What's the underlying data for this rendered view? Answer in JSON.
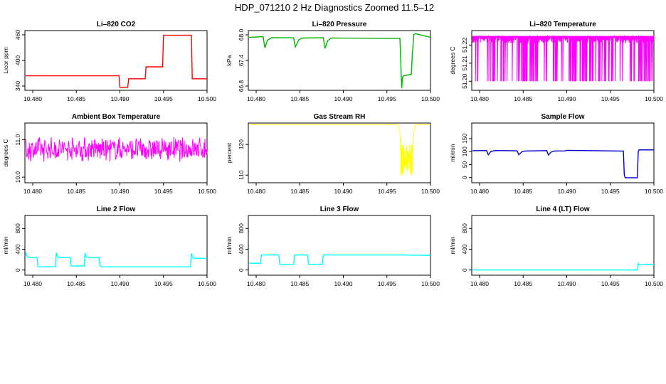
{
  "figure_title": "HDP_071210  2 Hz Diagnostics Zoomed 11.5–12",
  "chart_data": [
    {
      "type": "line",
      "title": "Li–820 CO2",
      "ylabel": "Licor ppm",
      "color": "#ff0000",
      "xlim": [
        10.4791,
        10.5
      ],
      "ylim": [
        330,
        470
      ],
      "xticks": [
        "10.480",
        "10.485",
        "10.490",
        "10.495",
        "10.500"
      ],
      "yticks": [
        "340",
        "400",
        "460"
      ],
      "series": [
        {
          "name": "CO2",
          "x": [
            10.4792,
            10.4899,
            10.49,
            10.4909,
            10.491,
            10.4929,
            10.493,
            10.4949,
            10.495,
            10.4982,
            10.4983,
            10.5
          ],
          "y": [
            364,
            364,
            337,
            337,
            357,
            357,
            385,
            385,
            459,
            459,
            357,
            357
          ]
        }
      ]
    },
    {
      "type": "line",
      "title": "Li–820 Pressure",
      "ylabel": "kPa",
      "color": "#00b400",
      "xlim": [
        10.4791,
        10.5
      ],
      "ylim": [
        66.7,
        68.1
      ],
      "xticks": [
        "10.480",
        "10.485",
        "10.490",
        "10.495",
        "10.500"
      ],
      "yticks": [
        "66.8",
        "67.4",
        "68.0"
      ],
      "series": [
        {
          "name": "Pressure",
          "x": [
            10.4792,
            10.4808,
            10.481,
            10.4813,
            10.4818,
            10.4843,
            10.4845,
            10.4849,
            10.4853,
            10.4877,
            10.4879,
            10.4882,
            10.4886,
            10.4965,
            10.4966,
            10.4967,
            10.4968,
            10.4969,
            10.4978,
            10.4979,
            10.4981,
            10.4983,
            10.5
          ],
          "y": [
            67.95,
            67.95,
            67.7,
            67.88,
            67.93,
            67.93,
            67.72,
            67.88,
            67.92,
            67.93,
            67.68,
            67.86,
            67.92,
            67.92,
            67.3,
            66.75,
            67.0,
            67.05,
            67.07,
            67.5,
            68.0,
            68.02,
            67.95
          ]
        }
      ]
    },
    {
      "type": "line",
      "title": "Li–820 Temperature",
      "ylabel": "degrees C",
      "color": "#ff00ff",
      "xlim": [
        10.4791,
        10.5
      ],
      "ylim": [
        51.195,
        51.228
      ],
      "xticks": [
        "10.480",
        "10.485",
        "10.490",
        "10.495",
        "10.500"
      ],
      "yticks": [
        "51.20",
        "51.21",
        "51.22"
      ],
      "series": [
        {
          "name": "Temperature",
          "x": [
            10.4792,
            10.5
          ],
          "y": [
            51.225,
            51.225
          ],
          "low": 51.2,
          "note": "rapid oscillation between 51.20 and 51.225"
        }
      ]
    },
    {
      "type": "line",
      "title": "Ambient Box Temperature",
      "ylabel": "degrees C",
      "color": "#ff00ff",
      "xlim": [
        10.4791,
        10.5
      ],
      "ylim": [
        9.85,
        11.45
      ],
      "xticks": [
        "10.480",
        "10.485",
        "10.490",
        "10.495",
        "10.500"
      ],
      "yticks": [
        "10.0",
        "11.0"
      ],
      "series": [
        {
          "name": "Ambient",
          "x": [
            10.4792,
            10.5
          ],
          "y": [
            10.75,
            10.75
          ],
          "spread": 0.35,
          "note": "noisy around 10.75"
        }
      ]
    },
    {
      "type": "line",
      "title": "Gas Stream RH",
      "ylabel": "percent",
      "color": "#ffff00",
      "xlim": [
        10.4791,
        10.5
      ],
      "ylim": [
        107.5,
        127
      ],
      "xticks": [
        "10.480",
        "10.485",
        "10.490",
        "10.495",
        "10.500"
      ],
      "yticks": [
        "110",
        "120"
      ],
      "series": [
        {
          "name": "RH",
          "x": [
            10.4792,
            10.4963,
            10.4965,
            10.4966,
            10.4967,
            10.4968,
            10.4969,
            10.4978,
            10.4979,
            10.4981,
            10.4983,
            10.5
          ],
          "y": [
            126.5,
            126.5,
            124,
            117,
            112,
            111.5,
            111.5,
            111.5,
            117,
            124,
            126.5,
            126.5
          ]
        }
      ]
    },
    {
      "type": "line",
      "title": "Sample Flow",
      "ylabel": "ml/min",
      "color": "#0000cc",
      "xlim": [
        10.4791,
        10.5
      ],
      "ylim": [
        -20,
        210
      ],
      "xticks": [
        "10.480",
        "10.485",
        "10.490",
        "10.495",
        "10.500"
      ],
      "yticks": [
        "0",
        "50",
        "100",
        "150"
      ],
      "series": [
        {
          "name": "Sample Flow",
          "x": [
            10.4792,
            10.4808,
            10.481,
            10.4813,
            10.4818,
            10.4843,
            10.4845,
            10.4849,
            10.4853,
            10.4877,
            10.4879,
            10.4882,
            10.4886,
            10.4898,
            10.49,
            10.4965,
            10.4966,
            10.4967,
            10.4981,
            10.4982,
            10.4983,
            10.5
          ],
          "y": [
            103,
            103,
            88,
            100,
            103,
            103,
            87,
            100,
            103,
            103,
            86,
            99,
            102,
            102,
            105,
            103,
            10,
            0,
            0,
            100,
            107,
            107
          ]
        }
      ]
    },
    {
      "type": "line",
      "title": "Line 2 Flow",
      "ylabel": "ml/min",
      "color": "#00ffff",
      "xlim": [
        10.4791,
        10.5
      ],
      "ylim": [
        -100,
        1050
      ],
      "xticks": [
        "10.480",
        "10.485",
        "10.490",
        "10.495",
        "10.500"
      ],
      "yticks": [
        "0",
        "400",
        "800"
      ],
      "series": [
        {
          "name": "Line 2 Flow",
          "x": [
            10.4792,
            10.4793,
            10.4795,
            10.4805,
            10.4806,
            10.4826,
            10.4827,
            10.4828,
            10.483,
            10.4843,
            10.4844,
            10.4859,
            10.486,
            10.4861,
            10.4863,
            10.4876,
            10.4877,
            10.4879,
            10.4981,
            10.4982,
            10.4984,
            10.5
          ],
          "y": [
            340,
            280,
            240,
            240,
            60,
            60,
            330,
            270,
            240,
            240,
            80,
            80,
            330,
            260,
            240,
            240,
            90,
            60,
            60,
            320,
            230,
            220
          ]
        }
      ]
    },
    {
      "type": "line",
      "title": "Line 3 Flow",
      "ylabel": "ml/min",
      "color": "#00ffff",
      "xlim": [
        10.4791,
        10.5
      ],
      "ylim": [
        -100,
        1050
      ],
      "xticks": [
        "10.480",
        "10.485",
        "10.490",
        "10.495",
        "10.500"
      ],
      "yticks": [
        "0",
        "400",
        "800"
      ],
      "series": [
        {
          "name": "Line 3 Flow",
          "x": [
            10.4792,
            10.4805,
            10.4806,
            10.4826,
            10.4827,
            10.4843,
            10.4844,
            10.4859,
            10.486,
            10.4876,
            10.4877,
            10.4965,
            10.5
          ],
          "y": [
            130,
            130,
            290,
            290,
            110,
            110,
            290,
            290,
            110,
            110,
            290,
            290,
            280
          ]
        }
      ]
    },
    {
      "type": "line",
      "title": "Line 4 (LT) Flow",
      "ylabel": "ml/min",
      "color": "#00ffff",
      "xlim": [
        10.4791,
        10.5
      ],
      "ylim": [
        -100,
        1050
      ],
      "xticks": [
        "10.480",
        "10.485",
        "10.490",
        "10.495",
        "10.500"
      ],
      "yticks": [
        "0",
        "400",
        "800"
      ],
      "series": [
        {
          "name": "Line 4 (LT) Flow",
          "x": [
            10.4792,
            10.4981,
            10.4982,
            10.4983,
            10.5
          ],
          "y": [
            0,
            0,
            130,
            110,
            105
          ]
        }
      ]
    }
  ]
}
